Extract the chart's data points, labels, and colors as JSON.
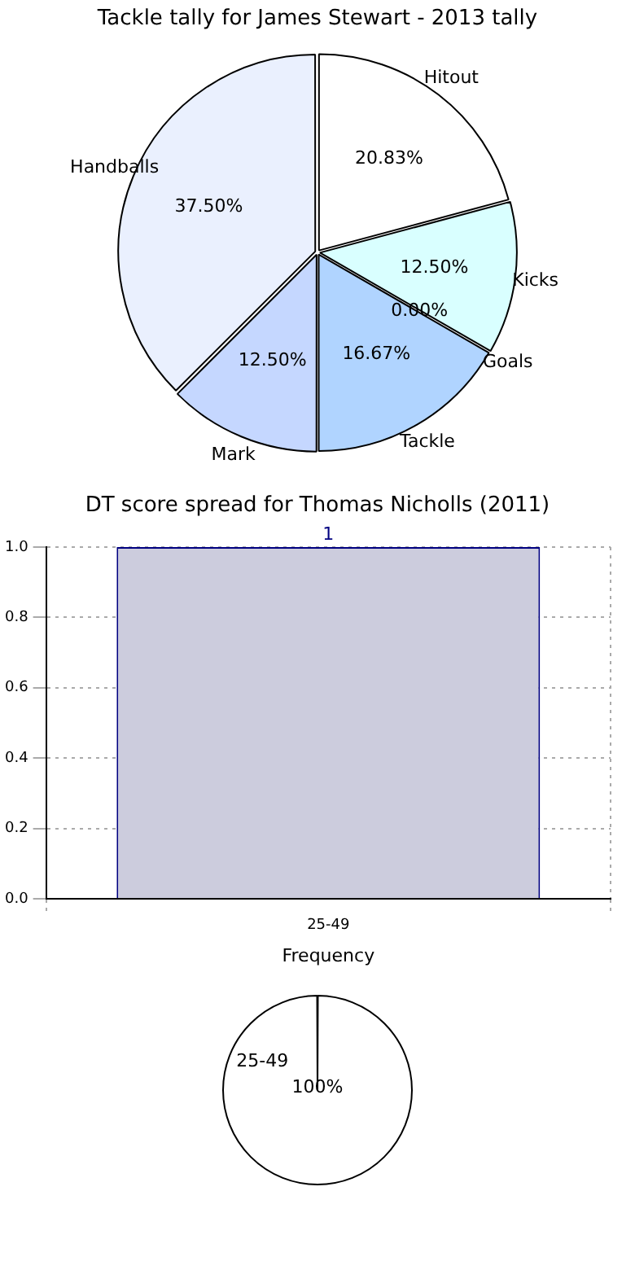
{
  "chart_data": [
    {
      "type": "pie",
      "title": "Tackle tally for James Stewart - 2013 tally",
      "categories": [
        "Hitout",
        "Kicks",
        "Goals",
        "Tackle",
        "Mark",
        "Handballs"
      ],
      "values": [
        20.83,
        12.5,
        0,
        16.67,
        12.5,
        37.5
      ],
      "value_labels": [
        "20.83%",
        "12.50%",
        "0.00%",
        "16.67%",
        "12.50%",
        "37.50%"
      ],
      "colors": [
        "#ffffff",
        "#d9ffff",
        "#c8c8d8",
        "#b0d4ff",
        "#c5d7ff",
        "#eaf0fe"
      ],
      "legend": false
    },
    {
      "type": "bar",
      "title": "DT score spread for Thomas Nicholls (2011)",
      "xlabel": "Frequency",
      "categories": [
        "25-49"
      ],
      "values": [
        1
      ],
      "color": "#ccccdd",
      "ylim": [
        0,
        1
      ],
      "yticks": [
        {
          "value": 0,
          "label": "0.0"
        },
        {
          "value": 0.2,
          "label": "0.2"
        },
        {
          "value": 0.4,
          "label": "0.4"
        },
        {
          "value": 0.6,
          "label": "0.6"
        },
        {
          "value": 0.8,
          "label": "0.8"
        },
        {
          "value": 1,
          "label": "1.0"
        }
      ],
      "data_labels": true,
      "grid": true,
      "legend": false
    },
    {
      "type": "pie",
      "categories": [
        "25-49"
      ],
      "values": [
        100
      ],
      "value_labels": [
        "100%"
      ],
      "colors": [
        "#ffffff"
      ],
      "legend": false
    }
  ]
}
